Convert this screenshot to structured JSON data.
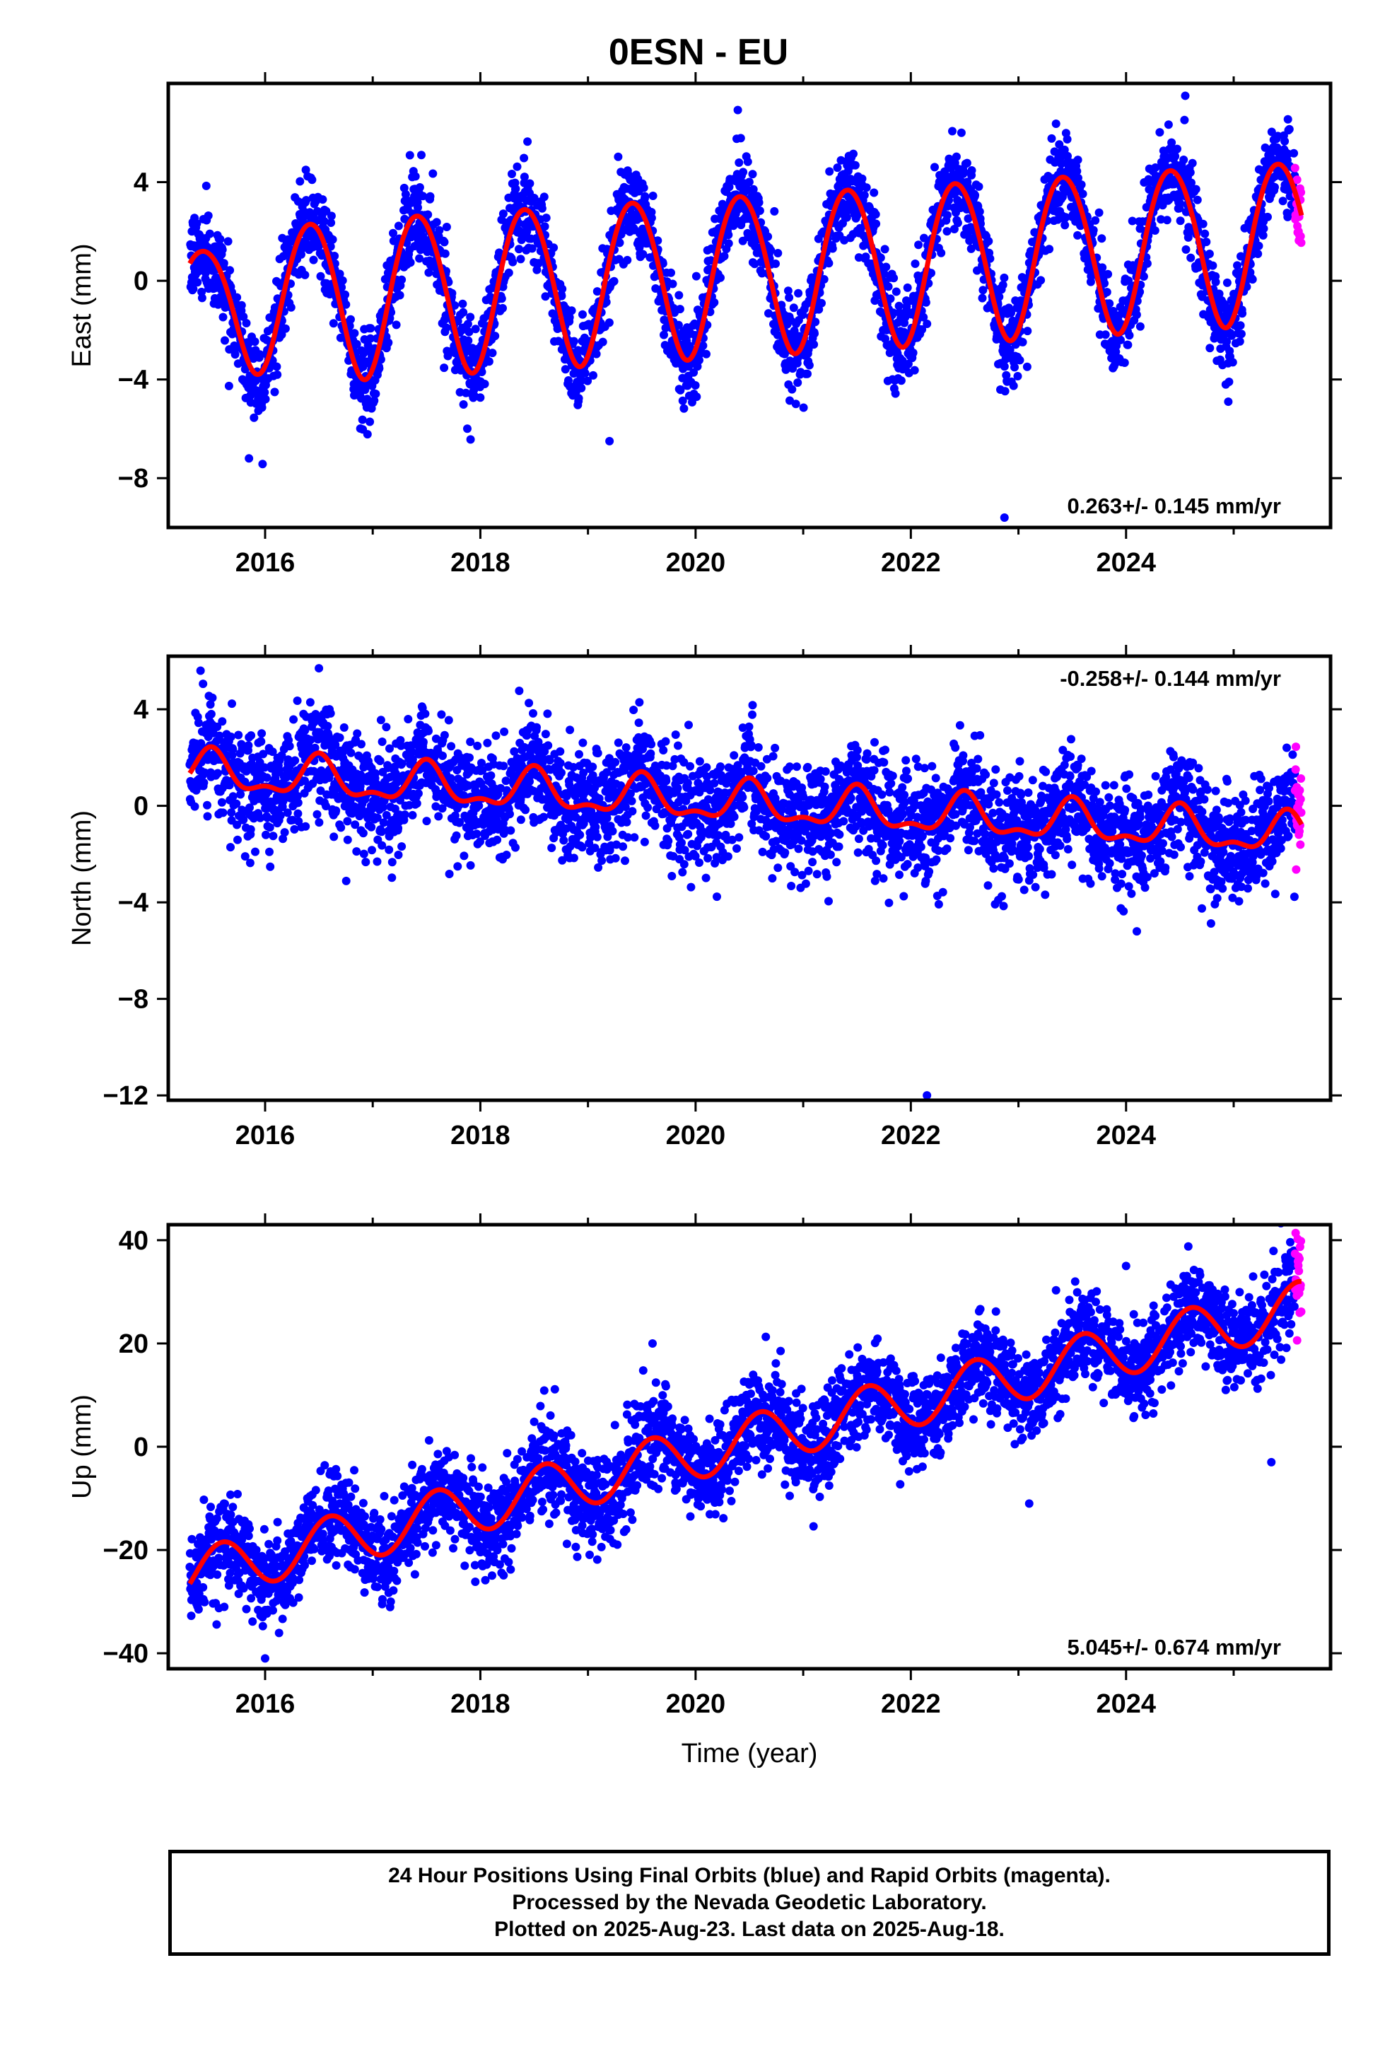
{
  "title": "0ESN - EU",
  "x_axis_label": "Time (year)",
  "footer": {
    "line1": "24 Hour Positions Using Final Orbits (blue) and Rapid Orbits (magenta).",
    "line2": "Processed by the Nevada Geodetic Laboratory.",
    "line3": "Plotted on 2025-Aug-23. Last data on 2025-Aug-18."
  },
  "colors": {
    "final": "#0000ff",
    "rapid": "#ff00ff",
    "model": "#ff0000",
    "frame": "#000000"
  },
  "chart_data": [
    {
      "type": "scatter",
      "key": "east",
      "ylabel": "East (mm)",
      "rate_text": "0.263+/- 0.145 mm/yr",
      "rate_position": "bottom-right",
      "xlim": [
        2015.1,
        2025.9
      ],
      "ylim": [
        -10,
        8
      ],
      "xticks": [
        2016,
        2018,
        2020,
        2022,
        2024
      ],
      "yticks": [
        4,
        0,
        -4,
        -8
      ],
      "ytick_labels": [
        "4",
        "0",
        "−4",
        "−8"
      ],
      "data_start": 2015.3,
      "data_end": 2025.63,
      "rapid_start": 2025.57,
      "model": {
        "offset": -1.0,
        "trend_mm_per_yr": 0.263,
        "annual_amplitude": 3.25,
        "annual_peak_phase": 0.42,
        "semiannual_amplitude": 0.2,
        "semiannual_peak_phase": 0.2,
        "start_amplitude_adjust": -1.0
      },
      "scatter_sd": 0.9,
      "outliers": [
        [
          2015.85,
          -7.2
        ],
        [
          2022.87,
          -9.6
        ],
        [
          2024.95,
          -4.9
        ],
        [
          2019.2,
          -6.5
        ],
        [
          2024.55,
          7.5
        ]
      ]
    },
    {
      "type": "scatter",
      "key": "north",
      "ylabel": "North (mm)",
      "rate_text": "-0.258+/- 0.144 mm/yr",
      "rate_position": "top-right",
      "xlim": [
        2015.1,
        2025.9
      ],
      "ylim": [
        -12.2,
        6.2
      ],
      "xticks": [
        2016,
        2018,
        2020,
        2022,
        2024
      ],
      "yticks": [
        4,
        0,
        -4,
        -8,
        -12
      ],
      "ytick_labels": [
        "4",
        "0",
        "−4",
        "−8",
        "−12"
      ],
      "data_start": 2015.3,
      "data_end": 2025.63,
      "rapid_start": 2025.57,
      "model": {
        "offset": 1.4,
        "trend_mm_per_yr": -0.258,
        "annual_amplitude": 0.75,
        "annual_peak_phase": 0.5,
        "semiannual_amplitude": 0.35,
        "semiannual_peak_phase": 0.0,
        "start_amplitude_adjust": 0.0
      },
      "scatter_sd": 1.1,
      "outliers": [
        [
          2022.15,
          -12.0
        ],
        [
          2016.5,
          5.7
        ],
        [
          2015.4,
          5.6
        ],
        [
          2024.1,
          -5.2
        ]
      ]
    },
    {
      "type": "scatter",
      "key": "up",
      "ylabel": "Up (mm)",
      "rate_text": "5.045+/- 0.674 mm/yr",
      "rate_position": "bottom-right",
      "xlim": [
        2015.1,
        2025.9
      ],
      "ylim": [
        -43,
        43
      ],
      "xticks": [
        2016,
        2018,
        2020,
        2022,
        2024
      ],
      "yticks": [
        40,
        20,
        0,
        -20,
        -40
      ],
      "ytick_labels": [
        "40",
        "20",
        "0",
        "−20",
        "−40"
      ],
      "data_start": 2015.3,
      "data_end": 2025.63,
      "rapid_start": 2025.57,
      "model": {
        "offset": -25.0,
        "trend_mm_per_yr": 5.045,
        "annual_amplitude": 5.0,
        "annual_peak_phase": 0.6,
        "semiannual_amplitude": 0.0,
        "semiannual_peak_phase": 0.0,
        "start_amplitude_adjust": 0.0
      },
      "scatter_sd": 4.5,
      "outliers": [
        [
          2016.0,
          -41.0
        ],
        [
          2019.6,
          20.0
        ],
        [
          2024.0,
          35.0
        ],
        [
          2025.35,
          -3.0
        ],
        [
          2023.1,
          -11.0
        ]
      ]
    }
  ]
}
